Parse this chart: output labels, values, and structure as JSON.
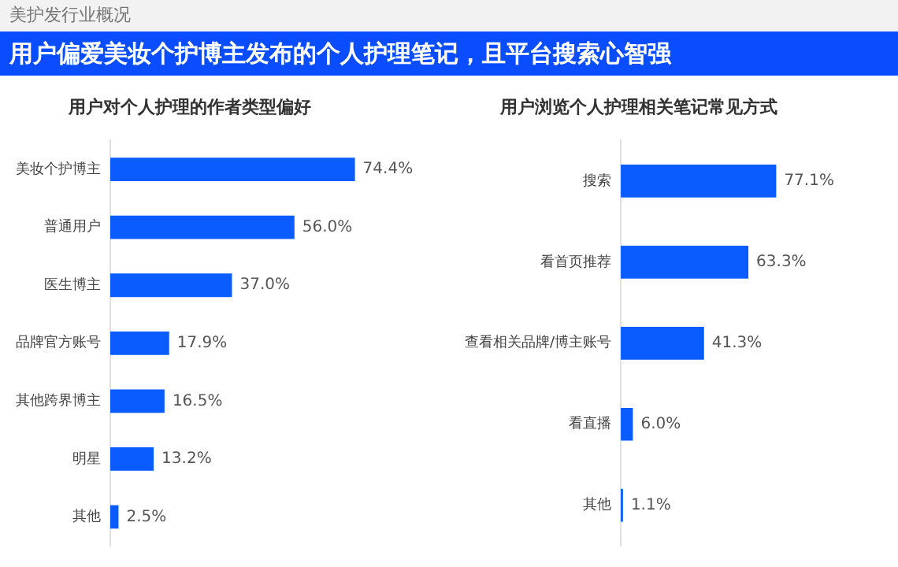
{
  "chart_data": [
    {
      "type": "other",
      "title": "用户偏爱美妆个护博主发布的个人护理笔记，且平台搜索心智强",
      "annotations": [
        "美护发行业概况"
      ]
    },
    {
      "type": "bar",
      "orientation": "horizontal",
      "title": "用户对个人护理的作者类型偏好",
      "categories": [
        "美妆个护博主",
        "普通用户",
        "医生博主",
        "品牌官方账号",
        "其他跨界博主",
        "明星",
        "其他"
      ],
      "values": [
        74.4,
        56.0,
        37.0,
        17.9,
        16.5,
        13.2,
        2.5
      ],
      "value_labels": [
        "74.4%",
        "56.0%",
        "37.0%",
        "17.9%",
        "16.5%",
        "13.2%",
        "2.5%"
      ],
      "color": "#0a5cff",
      "tick_labels": "y"
    },
    {
      "type": "bar",
      "orientation": "horizontal",
      "title": "用户浏览个人护理相关笔记常见方式",
      "categories": [
        "搜索",
        "看首页推荐",
        "查看相关品牌/博主账号",
        "看直播",
        "其他"
      ],
      "values": [
        77.1,
        63.3,
        41.3,
        6.0,
        1.1
      ],
      "value_labels": [
        "77.1%",
        "63.3%",
        "41.3%",
        "6.0%",
        "1.1%"
      ],
      "color": "#0a5cff",
      "tick_labels": "y"
    }
  ]
}
